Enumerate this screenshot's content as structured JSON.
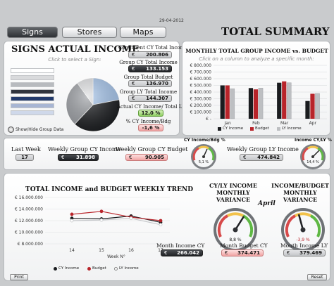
{
  "date": "29-04-2012",
  "nav": {
    "signs": "Signs",
    "stores": "Stores",
    "maps": "Maps"
  },
  "page_title": "TOTAL SUMMARY",
  "signs_panel": {
    "title": "SIGNS ACTUAL INCOME",
    "hint": "Click to select a Sign:",
    "legend_colors": [
      "#ffffff",
      "#d9dadc",
      "#b8bbbf",
      "#30343c",
      "#223a6b",
      "#a7b5d3",
      "#cfd8ea"
    ],
    "show_hide_label": "Show/Hide Group Data",
    "pie_slices": [
      {
        "label": "light-blue",
        "value": 22,
        "color": "#a9c8ee"
      },
      {
        "label": "black",
        "value": 40,
        "color": "#1d1f22"
      },
      {
        "label": "grey",
        "value": 28,
        "color": "#9ea1a6"
      },
      {
        "label": "light-grey",
        "value": 10,
        "color": "#e2e3e5"
      }
    ],
    "kpis": {
      "congruent_label": "Congruent CY Total Income",
      "congruent_value": "200.806",
      "group_cy_label": "Group CY Total Income",
      "group_cy_value": "133.153",
      "group_budget_label": "Group Total Budget",
      "group_budget_value": "136.970",
      "group_ly_label": "Group LY Total Income",
      "group_ly_value": "144.307",
      "actual_vs_ly_label": "Actual CY Income/ Total LY",
      "actual_vs_ly_value": "12,0 %",
      "cy_bdg_label": "% CY Income/Bdg",
      "cy_bdg_value": "-1,6 %",
      "currency": "€"
    }
  },
  "monthly_panel": {
    "title": "MONTHLY TOTAL GROUP INCOME vs. BUDGET",
    "hint": "Click on a column to analyze a specific month:",
    "legend": {
      "cy": "CY Income",
      "budget": "Budget",
      "ly": "LY Income"
    }
  },
  "weekly_row": {
    "last_week_label": "Last Week",
    "last_week_value": "17",
    "weekly_cy_label": "Weekly Group CY Income",
    "weekly_cy_value": "31.898",
    "weekly_budget_label": "Weekly Group CY Budget",
    "weekly_budget_value": "90.905",
    "gauge1_label": "CY Income/Bdg %",
    "gauge1_value": "5,1 %",
    "weekly_ly_label": "Weekly Group LY Income",
    "weekly_ly_value": "474.842",
    "gauge2_label": "Income CY/LY %",
    "gauge2_value": "14,4 %",
    "currency": "€"
  },
  "trend_panel": {
    "title": "TOTAL INCOME and BUDGET WEEKLY TREND",
    "xlabel": "Week N°",
    "legend": {
      "cy": "CY Income",
      "budget": "Budget",
      "ly": "LY Income"
    }
  },
  "variance_panel": {
    "title1": "CY/LY INCOME MONTHLY VARIANCE",
    "title2": "INCOME/BUDGET MONTHLY VARIANCE",
    "month": "April",
    "gauge1_value": "8,8 %",
    "gauge2_value": "-3,9 %",
    "month_income_label": "Month Income CY",
    "month_income_value": "266.042",
    "month_budget_label": "Month Budget CY",
    "month_budget_value": "374.471",
    "month_ly_label": "Month Income LY",
    "month_ly_value": "379.469",
    "currency": "€"
  },
  "footer": {
    "print": "Print",
    "reset": "Reset"
  },
  "colors": {
    "cy": "#1a1c1f",
    "budget": "#b8242a",
    "ly": "#bdbfc2"
  },
  "chart_data": [
    {
      "type": "bar",
      "title": "MONTHLY TOTAL GROUP INCOME vs. BUDGET",
      "categories": [
        "Jan",
        "Feb",
        "Mar",
        "Apr"
      ],
      "series": [
        {
          "name": "CY Income",
          "values": [
            500000,
            460000,
            540000,
            266042
          ]
        },
        {
          "name": "Budget",
          "values": [
            500000,
            440000,
            560000,
            374471
          ]
        },
        {
          "name": "LY Income",
          "values": [
            450000,
            460000,
            540000,
            379469
          ]
        }
      ],
      "ylim": [
        0,
        800000
      ],
      "yticks": [
        "€ -",
        "€ 100.000",
        "€ 200.000",
        "€ 300.000",
        "€ 400.000",
        "€ 500.000",
        "€ 600.000",
        "€ 700.000",
        "€ 800.000"
      ],
      "ytick_values": [
        0,
        100000,
        200000,
        300000,
        400000,
        500000,
        600000,
        700000,
        800000
      ]
    },
    {
      "type": "line",
      "title": "TOTAL INCOME and BUDGET WEEKLY TREND",
      "x": [
        "14",
        "15",
        "16",
        "17"
      ],
      "series": [
        {
          "name": "CY Income",
          "values": [
            12400000,
            12300000,
            12800000,
            11700000
          ]
        },
        {
          "name": "Budget",
          "values": [
            13100000,
            13600000,
            12600000,
            12000000
          ]
        },
        {
          "name": "LY Income",
          "values": [
            12000000,
            12100000,
            12400000,
            11300000
          ]
        }
      ],
      "ylim": [
        8000000,
        16000000
      ],
      "yticks": [
        "€ 8.000.000",
        "€ 10.000.000",
        "€ 12.000.000",
        "€ 14.000.000",
        "€ 16.000.000"
      ],
      "ytick_values": [
        8000000,
        10000000,
        12000000,
        14000000,
        16000000
      ],
      "xlabel": "Week N°"
    }
  ]
}
